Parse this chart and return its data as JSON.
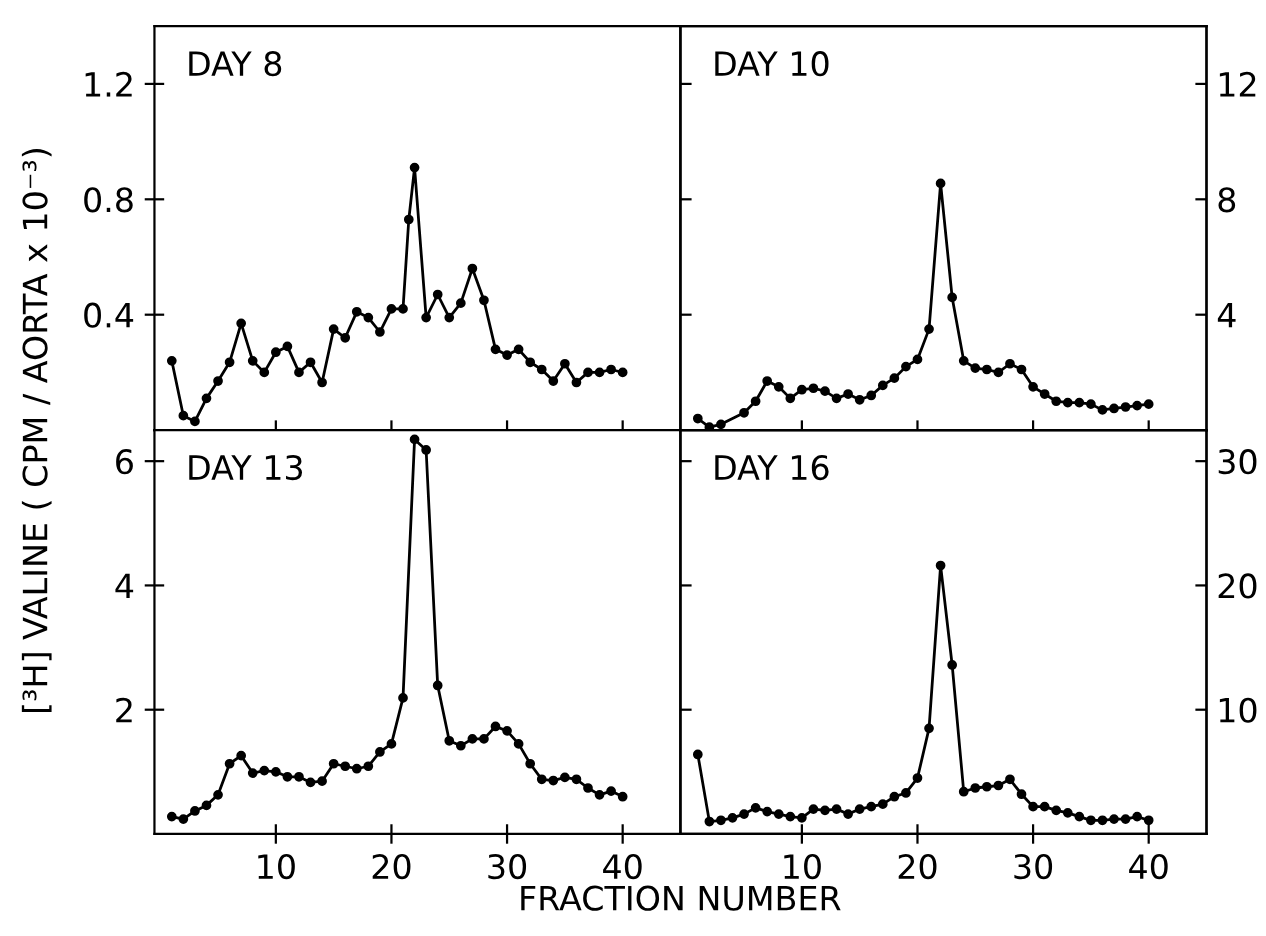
{
  "chart_data": [
    {
      "type": "line",
      "title": "DAY 8",
      "ylabel": "[³H] VALINE ( CPM / AORTA x 10⁻³)",
      "xlim": [
        -0.5,
        45
      ],
      "xticks": [
        {
          "value": 10,
          "label": null
        },
        {
          "value": 20,
          "label": null
        },
        {
          "value": 30,
          "label": null
        },
        {
          "value": 40,
          "label": null
        }
      ],
      "ylim": [
        0,
        1.4
      ],
      "yticks": [
        0.4,
        0.8,
        1.2
      ],
      "tick_labels": "y",
      "marker": "circle",
      "line_style": "solid",
      "grid": false,
      "series": [
        {
          "color": "#000000",
          "x": [
            1,
            2,
            3,
            4,
            5,
            6,
            7,
            8,
            9,
            10,
            11,
            12,
            13,
            14,
            15,
            16,
            17,
            18,
            19,
            20,
            21,
            21.5,
            22,
            23,
            24,
            25,
            26,
            27,
            28,
            29,
            30,
            31,
            32,
            33,
            34,
            35,
            36,
            37,
            38,
            39,
            40
          ],
          "values": [
            0.24,
            0.05,
            0.03,
            0.11,
            0.17,
            0.235,
            0.37,
            0.24,
            0.2,
            0.27,
            0.29,
            0.2,
            0.235,
            0.165,
            0.35,
            0.32,
            0.41,
            0.39,
            0.34,
            0.42,
            0.42,
            0.73,
            0.91,
            0.39,
            0.47,
            0.39,
            0.44,
            0.56,
            0.45,
            0.28,
            0.26,
            0.28,
            0.235,
            0.21,
            0.17,
            0.23,
            0.165,
            0.2,
            0.2,
            0.21,
            0.2
          ]
        }
      ]
    },
    {
      "type": "line",
      "title": "DAY 10",
      "xlim": [
        -0.5,
        45
      ],
      "xticks": [
        {
          "value": 10,
          "label": null
        },
        {
          "value": 20,
          "label": null
        },
        {
          "value": 30,
          "label": null
        },
        {
          "value": 40,
          "label": null
        }
      ],
      "y2lim": [
        0,
        14
      ],
      "y2ticks": [
        4,
        8,
        12
      ],
      "tick_labels": "y",
      "marker": "circle",
      "line_style": "solid",
      "grid": false,
      "series": [
        {
          "color": "#000000",
          "axis": "y2",
          "x": [
            1,
            2,
            3,
            5,
            6,
            7,
            8,
            9,
            10,
            11,
            12,
            13,
            14,
            15,
            16,
            17,
            18,
            19,
            20,
            21,
            22,
            23,
            24,
            25,
            26,
            27,
            28,
            29,
            30,
            31,
            32,
            33,
            34,
            35,
            36,
            37,
            38,
            39,
            40
          ],
          "values": [
            0.4,
            0.1,
            0.2,
            0.6,
            1.0,
            1.7,
            1.5,
            1.1,
            1.4,
            1.45,
            1.35,
            1.1,
            1.25,
            1.05,
            1.2,
            1.55,
            1.8,
            2.2,
            2.45,
            3.5,
            8.55,
            4.6,
            2.4,
            2.15,
            2.1,
            2.0,
            2.3,
            2.1,
            1.5,
            1.25,
            1.0,
            0.95,
            0.95,
            0.9,
            0.7,
            0.75,
            0.8,
            0.85,
            0.9
          ]
        }
      ]
    },
    {
      "type": "line",
      "title": "DAY 13",
      "xlabel": "FRACTION NUMBER",
      "xlim": [
        -0.5,
        45
      ],
      "xticks": [
        10,
        20,
        30,
        40
      ],
      "ylim": [
        0,
        6.5
      ],
      "yticks": [
        2,
        4,
        6
      ],
      "marker": "circle",
      "line_style": "solid",
      "grid": false,
      "series": [
        {
          "color": "#000000",
          "x": [
            1,
            2,
            3,
            4,
            5,
            6,
            7,
            8,
            9,
            10,
            11,
            12,
            13,
            14,
            15,
            16,
            17,
            18,
            19,
            20,
            21,
            22,
            23,
            24,
            25,
            26,
            27,
            28,
            29,
            30,
            31,
            32,
            33,
            34,
            35,
            36,
            37,
            38,
            39,
            40
          ],
          "values": [
            0.28,
            0.24,
            0.37,
            0.46,
            0.63,
            1.13,
            1.26,
            0.98,
            1.02,
            1.0,
            0.92,
            0.92,
            0.83,
            0.85,
            1.13,
            1.09,
            1.05,
            1.09,
            1.32,
            1.45,
            2.19,
            6.35,
            6.18,
            2.39,
            1.5,
            1.42,
            1.53,
            1.53,
            1.73,
            1.66,
            1.45,
            1.13,
            0.88,
            0.86,
            0.91,
            0.88,
            0.74,
            0.63,
            0.69,
            0.6
          ]
        }
      ]
    },
    {
      "type": "line",
      "title": "DAY 16",
      "xlim": [
        -0.5,
        45
      ],
      "xticks": [
        10,
        20,
        30,
        40
      ],
      "y2lim": [
        0,
        32.5
      ],
      "y2ticks": [
        10,
        20,
        30
      ],
      "marker": "circle",
      "line_style": "solid",
      "grid": false,
      "series": [
        {
          "color": "#000000",
          "axis": "y2",
          "x": [
            1,
            2,
            3,
            4,
            5,
            6,
            7,
            8,
            9,
            10,
            11,
            12,
            13,
            14,
            15,
            16,
            17,
            18,
            19,
            20,
            21,
            22,
            23,
            24,
            25,
            26,
            27,
            28,
            29,
            30,
            31,
            32,
            33,
            34,
            35,
            36,
            37,
            38,
            39,
            40
          ],
          "values": [
            6.4,
            1.0,
            1.1,
            1.3,
            1.6,
            2.1,
            1.8,
            1.6,
            1.4,
            1.3,
            2.0,
            1.9,
            2.0,
            1.6,
            2.0,
            2.2,
            2.4,
            3.0,
            3.3,
            4.5,
            8.5,
            21.6,
            13.6,
            3.4,
            3.7,
            3.8,
            3.9,
            4.4,
            3.2,
            2.2,
            2.2,
            1.9,
            1.7,
            1.4,
            1.1,
            1.1,
            1.2,
            1.2,
            1.4,
            1.1
          ]
        }
      ]
    }
  ]
}
